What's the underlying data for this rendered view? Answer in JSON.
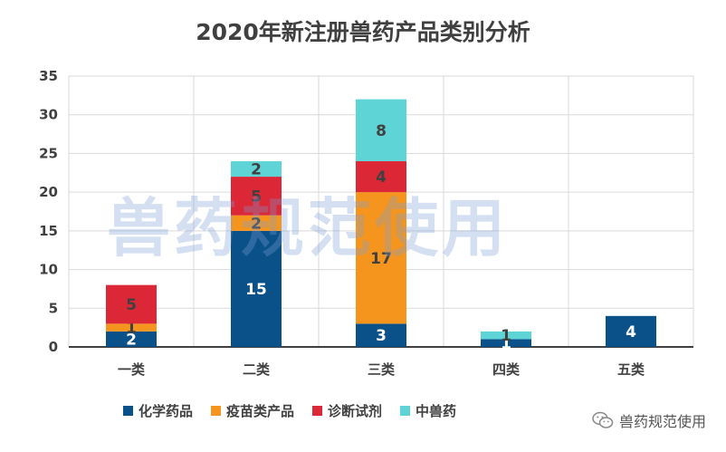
{
  "chart_data": {
    "type": "bar",
    "stacked": true,
    "title": "2020年新注册兽药产品类别分析",
    "categories": [
      "一类",
      "二类",
      "三类",
      "四类",
      "五类"
    ],
    "series": [
      {
        "name": "化学药品",
        "values": [
          2,
          15,
          3,
          1,
          4
        ],
        "color": "#0b5189"
      },
      {
        "name": "疫苗类产品",
        "values": [
          1,
          2,
          17,
          0,
          0
        ],
        "color": "#f5951e"
      },
      {
        "name": "诊断试剂",
        "values": [
          5,
          5,
          4,
          0,
          0
        ],
        "color": "#dc2737"
      },
      {
        "name": "中兽药",
        "values": [
          0,
          2,
          8,
          1,
          0
        ],
        "color": "#5fd4d6"
      }
    ],
    "ylim": [
      0,
      35
    ],
    "yticks": [
      0,
      5,
      10,
      15,
      20,
      25,
      30,
      35
    ],
    "grid": true,
    "legend_position": "bottom",
    "xlabel": "",
    "ylabel": ""
  },
  "watermark": "兽药规范使用",
  "footer": {
    "brand": "兽药规范使用",
    "icon": "wechat-icon"
  }
}
